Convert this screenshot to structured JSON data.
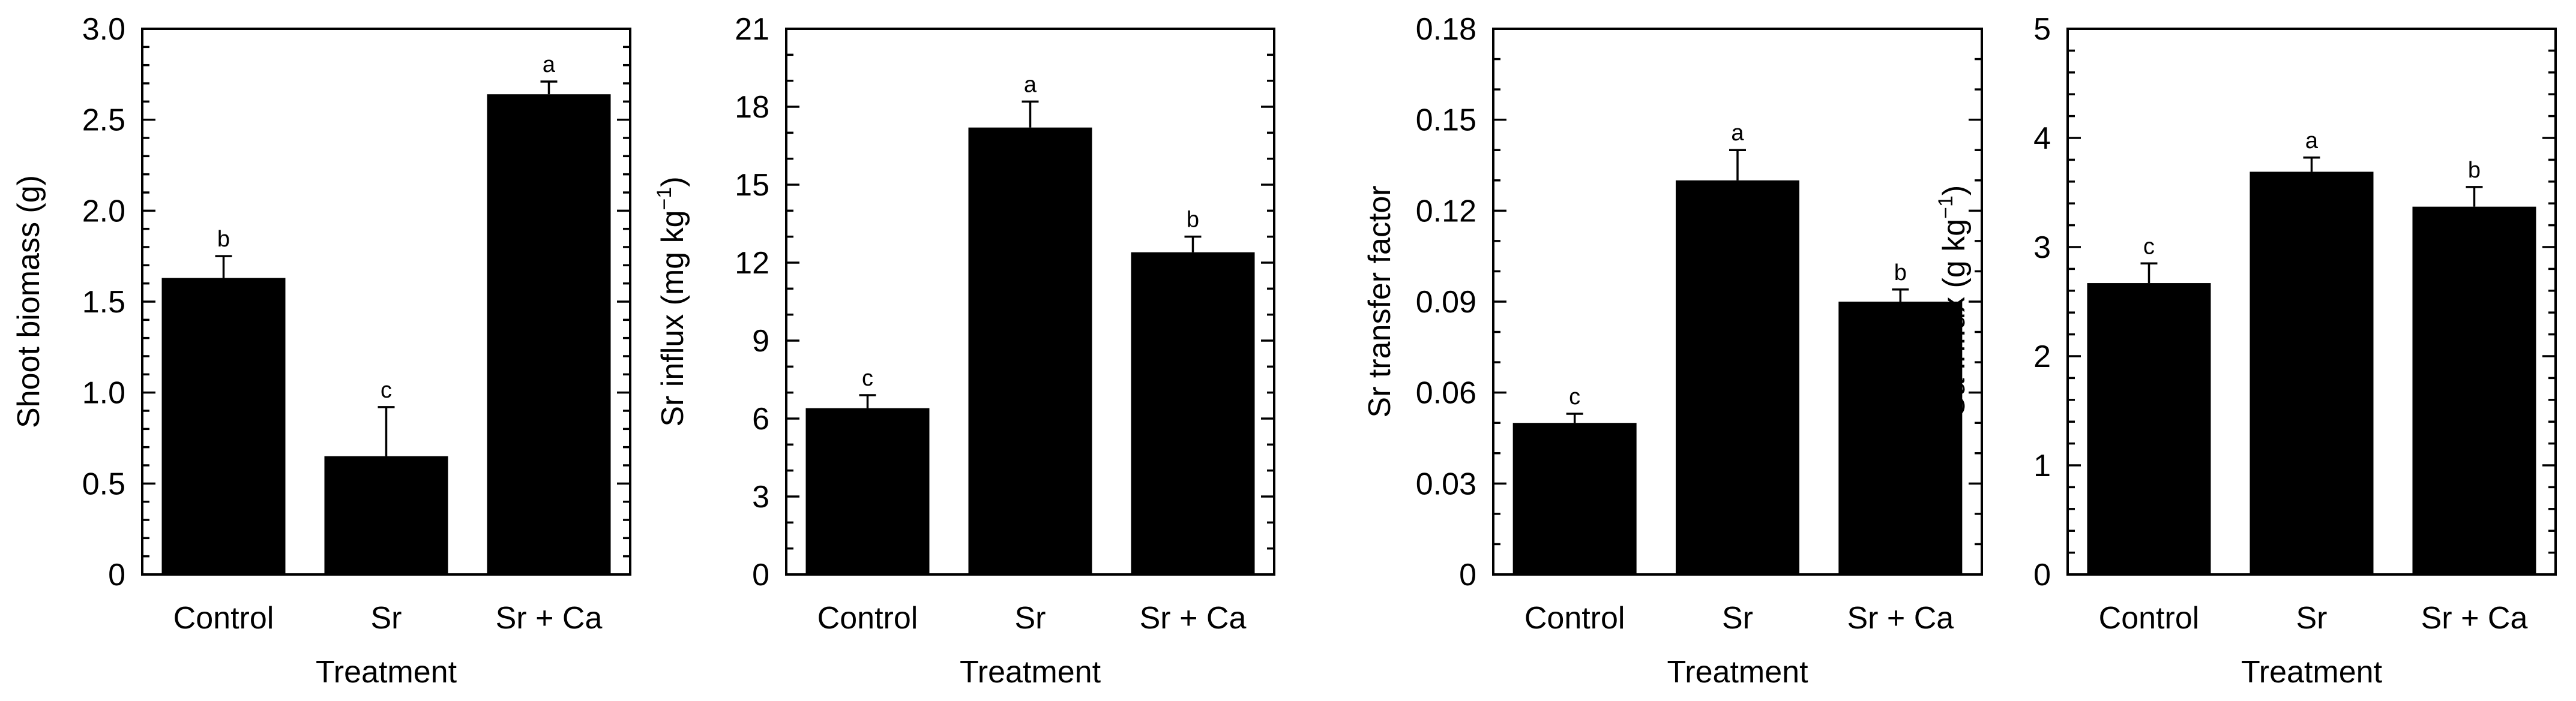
{
  "colors": {
    "bar": "#000000",
    "axis": "#000000",
    "background": "#ffffff"
  },
  "chart_data": [
    {
      "type": "bar",
      "categories": [
        "Control",
        "Sr",
        "Sr + Ca"
      ],
      "values": [
        1.63,
        0.65,
        2.64
      ],
      "errors": [
        0.12,
        0.27,
        0.07
      ],
      "sig_letters": [
        "b",
        "c",
        "a"
      ],
      "xlabel": "Treatment",
      "ylabel": "Shoot biomass (g)",
      "ylabel_sup": "",
      "ylabel_tail": "",
      "ylim": [
        0,
        3.0
      ],
      "yticks": [
        "0",
        "0.5",
        "1.0",
        "1.5",
        "2.0",
        "2.5",
        "3.0"
      ],
      "ytick_values": [
        0,
        0.5,
        1.0,
        1.5,
        2.0,
        2.5,
        3.0
      ],
      "minor_step": 0.1,
      "grid": false
    },
    {
      "type": "bar",
      "categories": [
        "Control",
        "Sr",
        "Sr + Ca"
      ],
      "values": [
        6.4,
        17.2,
        12.4
      ],
      "errors": [
        0.5,
        1.0,
        0.6
      ],
      "sig_letters": [
        "c",
        "a",
        "b"
      ],
      "xlabel": "Treatment",
      "ylabel": "Sr influx (mg kg",
      "ylabel_sup": "−1",
      "ylabel_tail": ")",
      "ylim": [
        0,
        21
      ],
      "yticks": [
        "0",
        "3",
        "6",
        "9",
        "12",
        "15",
        "18",
        "21"
      ],
      "ytick_values": [
        0,
        3,
        6,
        9,
        12,
        15,
        18,
        21
      ],
      "minor_step": 1,
      "grid": false
    },
    {
      "type": "bar",
      "categories": [
        "Control",
        "Sr",
        "Sr + Ca"
      ],
      "values": [
        0.05,
        0.13,
        0.09
      ],
      "errors": [
        0.003,
        0.01,
        0.004
      ],
      "sig_letters": [
        "c",
        "a",
        "b"
      ],
      "xlabel": "Treatment",
      "ylabel": "Sr transfer factor",
      "ylabel_sup": "",
      "ylabel_tail": "",
      "ylim": [
        0,
        0.18
      ],
      "yticks": [
        "0",
        "0.03",
        "0.06",
        "0.09",
        "0.12",
        "0.15",
        "0.18"
      ],
      "ytick_values": [
        0,
        0.03,
        0.06,
        0.09,
        0.12,
        0.15,
        0.18
      ],
      "minor_step": 0.01,
      "grid": false
    },
    {
      "type": "bar",
      "categories": [
        "Control",
        "Sr",
        "Sr + Ca"
      ],
      "values": [
        2.67,
        3.69,
        3.37
      ],
      "errors": [
        0.18,
        0.13,
        0.18
      ],
      "sig_letters": [
        "c",
        "a",
        "b"
      ],
      "xlabel": "Treatment",
      "ylabel": "Ca influx (g kg",
      "ylabel_sup": "−1",
      "ylabel_tail": ")",
      "ylim": [
        0,
        5
      ],
      "yticks": [
        "0",
        "1",
        "2",
        "3",
        "4",
        "5"
      ],
      "ytick_values": [
        0,
        1,
        2,
        3,
        4,
        5
      ],
      "minor_step": 0.2,
      "grid": false
    }
  ]
}
